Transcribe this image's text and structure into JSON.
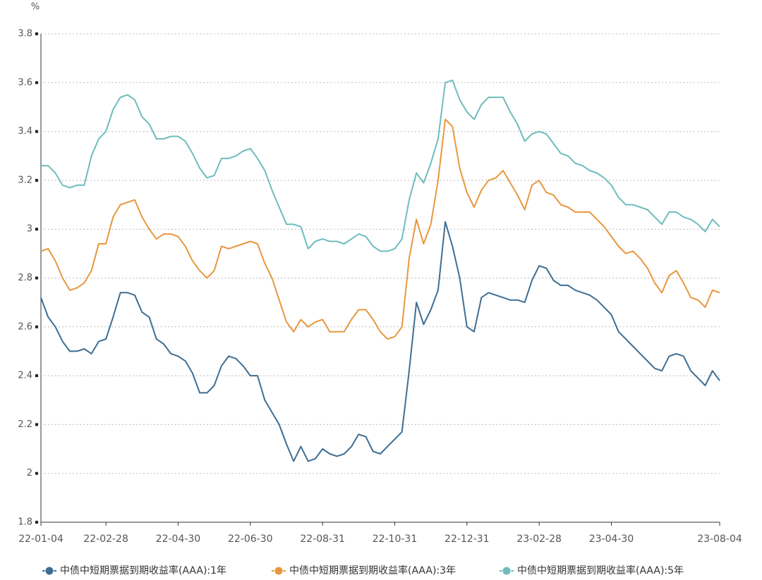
{
  "chart_data": {
    "type": "line",
    "y_label": "%",
    "categories": [
      "22-01-04",
      null,
      null,
      null,
      null,
      null,
      null,
      null,
      null,
      "22-02-28",
      null,
      null,
      null,
      null,
      null,
      null,
      null,
      null,
      null,
      "22-04-30",
      null,
      null,
      null,
      null,
      null,
      null,
      null,
      null,
      null,
      "22-06-30",
      null,
      null,
      null,
      null,
      null,
      null,
      null,
      null,
      null,
      "22-08-31",
      null,
      null,
      null,
      null,
      null,
      null,
      null,
      null,
      null,
      "22-10-31",
      null,
      null,
      null,
      null,
      null,
      null,
      null,
      null,
      null,
      "22-12-31",
      null,
      null,
      null,
      null,
      null,
      null,
      null,
      null,
      null,
      "23-02-28",
      null,
      null,
      null,
      null,
      null,
      null,
      null,
      null,
      null,
      "23-04-30",
      null,
      null,
      null,
      null,
      null,
      null,
      null,
      null,
      null,
      null,
      null,
      null,
      null,
      null,
      "23-08-04"
    ],
    "series": [
      {
        "name": "中债中短期票据到期收益率(AAA):1年",
        "color": "#3d6e94",
        "values": [
          2.72,
          2.64,
          2.6,
          2.54,
          2.5,
          2.5,
          2.51,
          2.49,
          2.54,
          2.55,
          2.64,
          2.74,
          2.74,
          2.73,
          2.66,
          2.64,
          2.55,
          2.53,
          2.49,
          2.48,
          2.46,
          2.41,
          2.33,
          2.33,
          2.36,
          2.44,
          2.48,
          2.47,
          2.44,
          2.4,
          2.4,
          2.3,
          2.25,
          2.2,
          2.12,
          2.05,
          2.11,
          2.05,
          2.06,
          2.1,
          2.08,
          2.07,
          2.08,
          2.11,
          2.16,
          2.15,
          2.09,
          2.08,
          2.11,
          2.14,
          2.17,
          2.42,
          2.7,
          2.61,
          2.67,
          2.75,
          3.03,
          2.93,
          2.8,
          2.6,
          2.58,
          2.72,
          2.74,
          2.73,
          2.72,
          2.71,
          2.71,
          2.7,
          2.79,
          2.85,
          2.84,
          2.79,
          2.77,
          2.77,
          2.75,
          2.74,
          2.73,
          2.71,
          2.68,
          2.65,
          2.58,
          2.55,
          2.52,
          2.49,
          2.46,
          2.43,
          2.42,
          2.48,
          2.49,
          2.48,
          2.42,
          2.39,
          2.36,
          2.42,
          2.38
        ]
      },
      {
        "name": "中债中短期票据到期收益率(AAA):3年",
        "color": "#e8973f",
        "values": [
          2.91,
          2.92,
          2.87,
          2.8,
          2.75,
          2.76,
          2.78,
          2.83,
          2.94,
          2.94,
          3.05,
          3.1,
          3.11,
          3.12,
          3.05,
          3.0,
          2.96,
          2.98,
          2.98,
          2.97,
          2.93,
          2.87,
          2.83,
          2.8,
          2.83,
          2.93,
          2.92,
          2.93,
          2.94,
          2.95,
          2.94,
          2.86,
          2.8,
          2.71,
          2.62,
          2.58,
          2.63,
          2.6,
          2.62,
          2.63,
          2.58,
          2.58,
          2.58,
          2.63,
          2.67,
          2.67,
          2.63,
          2.58,
          2.55,
          2.56,
          2.6,
          2.88,
          3.04,
          2.94,
          3.02,
          3.2,
          3.45,
          3.42,
          3.25,
          3.15,
          3.09,
          3.16,
          3.2,
          3.21,
          3.24,
          3.19,
          3.14,
          3.08,
          3.18,
          3.2,
          3.15,
          3.14,
          3.1,
          3.09,
          3.07,
          3.07,
          3.07,
          3.04,
          3.01,
          2.97,
          2.93,
          2.9,
          2.91,
          2.88,
          2.84,
          2.78,
          2.74,
          2.81,
          2.83,
          2.78,
          2.72,
          2.71,
          2.68,
          2.75,
          2.74
        ]
      },
      {
        "name": "中债中短期票据到期收益率(AAA):5年",
        "color": "#6fbcbc",
        "values": [
          3.26,
          3.26,
          3.23,
          3.18,
          3.17,
          3.18,
          3.18,
          3.3,
          3.37,
          3.4,
          3.49,
          3.54,
          3.55,
          3.53,
          3.46,
          3.43,
          3.37,
          3.37,
          3.38,
          3.38,
          3.36,
          3.31,
          3.25,
          3.21,
          3.22,
          3.29,
          3.29,
          3.3,
          3.32,
          3.33,
          3.29,
          3.24,
          3.16,
          3.09,
          3.02,
          3.02,
          3.01,
          2.92,
          2.95,
          2.96,
          2.95,
          2.95,
          2.94,
          2.96,
          2.98,
          2.97,
          2.93,
          2.91,
          2.91,
          2.92,
          2.96,
          3.12,
          3.23,
          3.19,
          3.27,
          3.37,
          3.6,
          3.61,
          3.53,
          3.48,
          3.45,
          3.51,
          3.54,
          3.54,
          3.54,
          3.48,
          3.43,
          3.36,
          3.39,
          3.4,
          3.39,
          3.35,
          3.31,
          3.3,
          3.27,
          3.26,
          3.24,
          3.23,
          3.21,
          3.18,
          3.13,
          3.1,
          3.1,
          3.09,
          3.08,
          3.05,
          3.02,
          3.07,
          3.07,
          3.05,
          3.04,
          3.02,
          2.99,
          3.04,
          3.01
        ]
      }
    ],
    "ylim": [
      1.8,
      3.8
    ],
    "yticks": [
      1.8,
      2,
      2.2,
      2.4,
      2.6,
      2.8,
      3,
      3.2,
      3.4,
      3.6,
      3.8
    ],
    "grid": true,
    "legend": "bottom"
  }
}
